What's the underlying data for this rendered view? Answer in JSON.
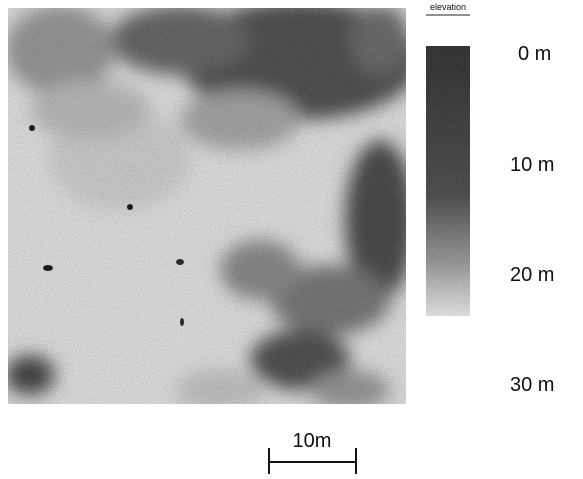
{
  "legend": {
    "title": "elevation",
    "labels": [
      "0 m",
      "10 m",
      "20 m",
      "30 m"
    ]
  },
  "scale_bar": {
    "label": "10m"
  }
}
